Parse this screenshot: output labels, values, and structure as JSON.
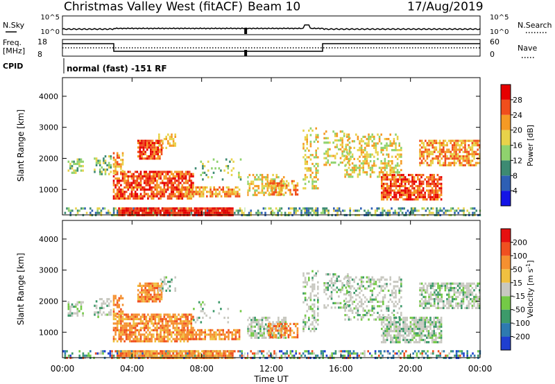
{
  "header": {
    "site": "Christmas Valley West (fitACF)",
    "beam": "Beam 10",
    "date": "17/Aug/2019"
  },
  "panels": {
    "noise": {
      "left_label": "N.Sky",
      "right_label": "N.Search",
      "left_ticks": [
        "10^5",
        "10^0"
      ],
      "right_ticks": [
        "10^5",
        "10^0"
      ]
    },
    "freq": {
      "left_label_1": "Freq.",
      "left_label_2": "[MHz]",
      "left_ticks": [
        "18",
        "8"
      ],
      "right_label": "Nave",
      "right_ticks": [
        "60",
        "0"
      ]
    },
    "cpid": {
      "label": "CPID",
      "text": "normal (fast) -151 RF"
    }
  },
  "chart_data": [
    {
      "type": "heatmap",
      "name": "power",
      "ylabel": "Slant Range [km]",
      "xlabel": "",
      "y_ticks": [
        "1000",
        "2000",
        "3000",
        "4000"
      ],
      "ylim": [
        180,
        4600
      ],
      "xlim": [
        0,
        24
      ],
      "colorbar_label": "Power [dB]",
      "colorbar_ticks": [
        "4",
        "8",
        "12",
        "16",
        "20",
        "24",
        "28"
      ],
      "colorbar_colors": [
        "#1414e6",
        "#2e5fb4",
        "#3d8a72",
        "#8fd26e",
        "#e8d24a",
        "#f59a24",
        "#f04e1c",
        "#e60000"
      ]
    },
    {
      "type": "heatmap",
      "name": "velocity",
      "ylabel": "Slant Range [km]",
      "xlabel": "Time UT",
      "y_ticks": [
        "1000",
        "2000",
        "3000",
        "4000"
      ],
      "ylim": [
        180,
        4600
      ],
      "xlim": [
        0,
        24
      ],
      "x_ticks": [
        "00:00",
        "04:00",
        "08:00",
        "12:00",
        "16:00",
        "20:00",
        "00:00"
      ],
      "colorbar_label": "Velocity [m s^-1]",
      "colorbar_ticks": [
        "200",
        "100",
        "50",
        "15",
        "-15",
        "-50",
        "-100",
        "-200"
      ],
      "colorbar_colors": [
        "#1f3fd0",
        "#2e7ab0",
        "#3d9a6a",
        "#74c946",
        "#c8c8c0",
        "#f0c040",
        "#f59030",
        "#f05020",
        "#e61010"
      ]
    }
  ]
}
